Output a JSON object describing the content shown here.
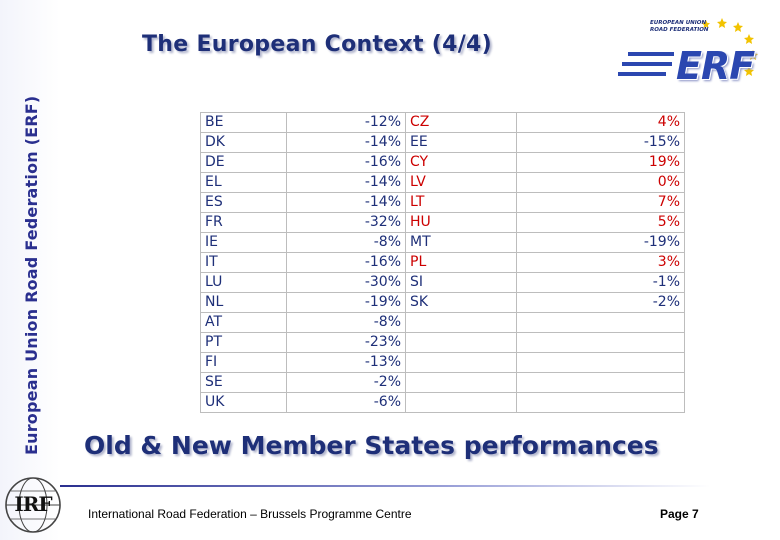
{
  "sidebar": {
    "org_name": "European Union Road Federation (ERF)"
  },
  "header": {
    "title": "The European Context (4/4)"
  },
  "erf_logo": {
    "caption": "European Union Road Federation",
    "wordmark": "ERF",
    "color": "#2b47b0"
  },
  "table": {
    "left_rows": [
      {
        "country": "BE",
        "value": "-12%"
      },
      {
        "country": "DK",
        "value": "-14%"
      },
      {
        "country": "DE",
        "value": "-16%"
      },
      {
        "country": "EL",
        "value": "-14%"
      },
      {
        "country": "ES",
        "value": "-14%"
      },
      {
        "country": "FR",
        "value": "-32%"
      },
      {
        "country": "IE",
        "value": "-8%"
      },
      {
        "country": "IT",
        "value": "-16%"
      },
      {
        "country": "LU",
        "value": "-30%"
      },
      {
        "country": "NL",
        "value": "-19%"
      },
      {
        "country": "AT",
        "value": "-8%"
      },
      {
        "country": "PT",
        "value": "-23%"
      },
      {
        "country": "FI",
        "value": "-13%"
      },
      {
        "country": "SE",
        "value": "-2%"
      },
      {
        "country": "UK",
        "value": "-6%"
      }
    ],
    "right_rows": [
      {
        "country": "CZ",
        "value": "4%",
        "highlight": true
      },
      {
        "country": "EE",
        "value": "-15%",
        "highlight": false
      },
      {
        "country": "CY",
        "value": "19%",
        "highlight": true
      },
      {
        "country": "LV",
        "value": "0%",
        "highlight": true
      },
      {
        "country": "LT",
        "value": "7%",
        "highlight": true
      },
      {
        "country": "HU",
        "value": "5%",
        "highlight": true
      },
      {
        "country": "MT",
        "value": "-19%",
        "highlight": false
      },
      {
        "country": "PL",
        "value": "3%",
        "highlight": true
      },
      {
        "country": "SI",
        "value": "-1%",
        "highlight": false
      },
      {
        "country": "SK",
        "value": "-2%",
        "highlight": false
      }
    ],
    "colors": {
      "text": "#1e2f78",
      "highlight": "#cc0000"
    }
  },
  "subheading": "Old & New Member States performances",
  "footer": {
    "text": "International Road Federation – Brussels Programme Centre",
    "page": "Page 7",
    "logo_text": "IRF"
  }
}
